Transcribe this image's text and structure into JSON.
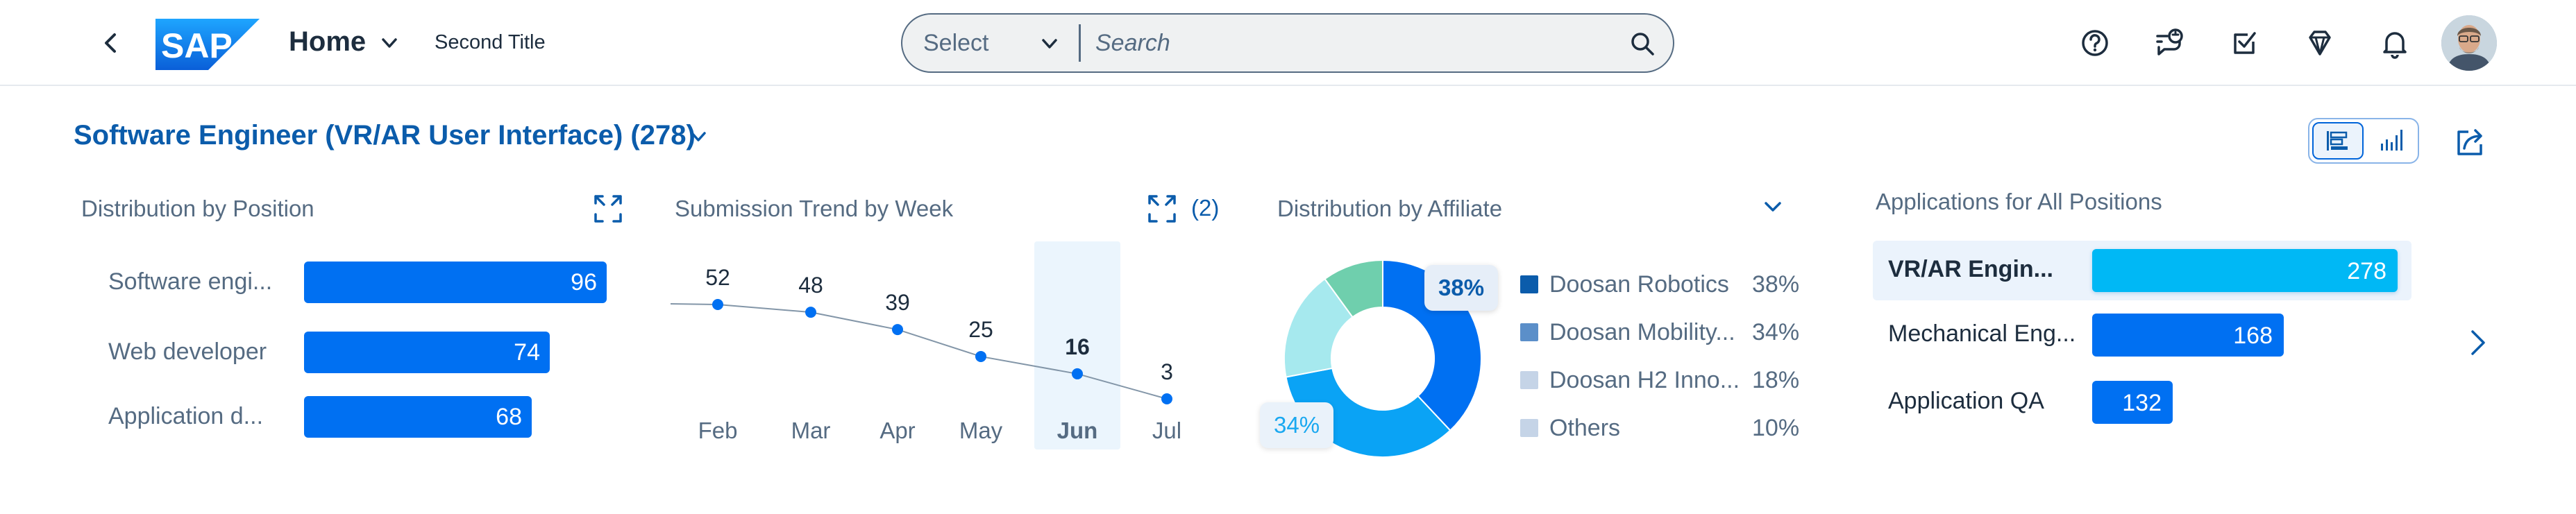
{
  "shell": {
    "title": "Home",
    "second_title": "Second Title",
    "logo_text": "SAP",
    "search": {
      "select_label": "Select",
      "placeholder": "Search"
    },
    "actions": [
      "help-icon",
      "chat-bot-icon",
      "tasks-icon",
      "diamond-icon",
      "notification-icon"
    ]
  },
  "header": {
    "page_title": "Software Engineer (VR/AR User Interface) (278)",
    "views": [
      "table-view-icon",
      "chart-view-icon"
    ],
    "active_view": "table-view-icon"
  },
  "cards": {
    "position": {
      "title": "Distribution by Position",
      "rows": [
        {
          "label": "Software engi...",
          "value": "96"
        },
        {
          "label": "Web developer",
          "value": "74"
        },
        {
          "label": "Application d...",
          "value": "68"
        }
      ]
    },
    "trend": {
      "title": "Submission Trend by Week",
      "count": "(2)",
      "months": [
        "Feb",
        "Mar",
        "Apr",
        "May",
        "Jun",
        "Jul"
      ],
      "values": [
        "52",
        "48",
        "39",
        "25",
        "16",
        "3"
      ],
      "highlight": "Jun"
    },
    "affiliate": {
      "title": "Distribution by Affiliate",
      "legend": [
        {
          "label": "Doosan Robotics",
          "pct": "38%",
          "color": "#0b5cab"
        },
        {
          "label": "Doosan Mobility...",
          "pct": "34%",
          "color": "#5b8fc9"
        },
        {
          "label": "Doosan H2 Inno...",
          "pct": "18%",
          "color": "#c5d4e7"
        },
        {
          "label": "Others",
          "pct": "10%",
          "color": "#c5d4e7"
        }
      ],
      "tip_primary": "38%",
      "tip_secondary": "34%"
    },
    "applications": {
      "title": "Applications for All Positions",
      "rows": [
        {
          "label": "VR/AR Engin...",
          "value": "278"
        },
        {
          "label": "Mechanical Eng...",
          "value": "168"
        },
        {
          "label": "Application QA",
          "value": "132"
        }
      ]
    }
  },
  "chart_data": [
    {
      "type": "bar",
      "title": "Distribution by Position",
      "categories": [
        "Software engi...",
        "Web developer",
        "Application d..."
      ],
      "values": [
        96,
        74,
        68
      ]
    },
    {
      "type": "line",
      "title": "Submission Trend by Week",
      "categories": [
        "Feb",
        "Mar",
        "Apr",
        "May",
        "Jun",
        "Jul"
      ],
      "values": [
        52,
        48,
        39,
        25,
        16,
        3
      ]
    },
    {
      "type": "pie",
      "title": "Distribution by Affiliate",
      "categories": [
        "Doosan Robotics",
        "Doosan Mobility...",
        "Doosan H2 Inno...",
        "Others"
      ],
      "values": [
        38,
        34,
        18,
        10
      ]
    },
    {
      "type": "bar",
      "title": "Applications for All Positions",
      "categories": [
        "VR/AR Engin...",
        "Mechanical Eng...",
        "Application QA"
      ],
      "values": [
        278,
        168,
        132
      ]
    }
  ],
  "colors": {
    "brand_blue": "#0070f2",
    "accent_cyan": "#00b8f5",
    "title_blue": "#0b5cab",
    "muted_text": "#556b82"
  }
}
